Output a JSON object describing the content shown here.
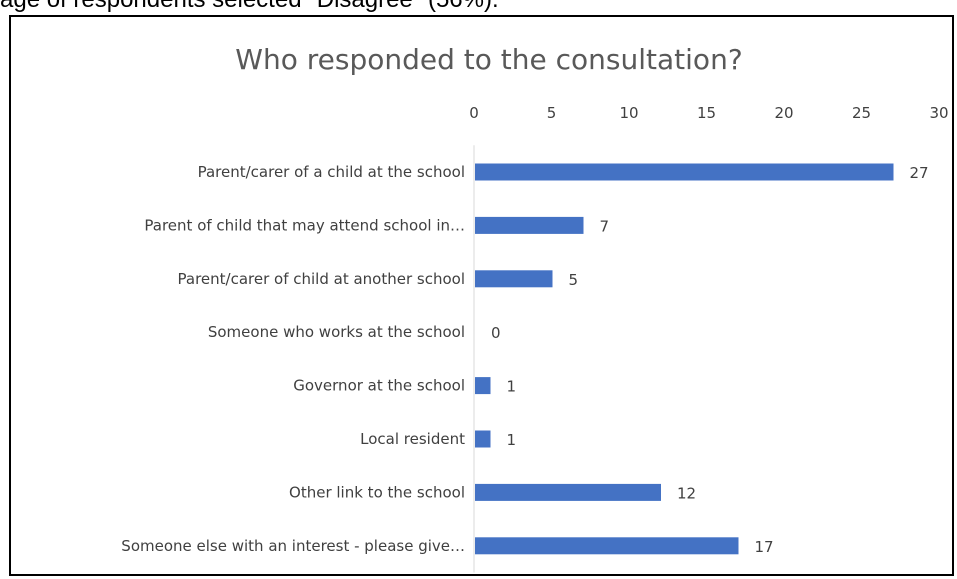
{
  "document": {
    "partial_text": "age of respondents selected \"Disagree\" (56%)."
  },
  "colors": {
    "bar": "#4472C4",
    "axis_line": "#D9D9D9",
    "text": "#404040",
    "title": "#595959"
  },
  "chart_data": {
    "type": "bar",
    "orientation": "horizontal",
    "title": "Who responded to the consultation?",
    "xlabel": "",
    "ylabel": "",
    "xlim": [
      0,
      30
    ],
    "x_ticks": [
      0,
      5,
      10,
      15,
      20,
      25,
      30
    ],
    "x_axis_position": "top",
    "grid": false,
    "legend": "none",
    "data_labels": true,
    "categories": [
      "Parent/carer of a child at the school",
      "Parent of child that may attend school in…",
      "Parent/carer of child at another school",
      "Someone who works at the school",
      "Governor at the school",
      "Local resident",
      "Other link to the school",
      "Someone else with an interest - please give…"
    ],
    "values": [
      27,
      7,
      5,
      0,
      1,
      1,
      12,
      17
    ]
  }
}
